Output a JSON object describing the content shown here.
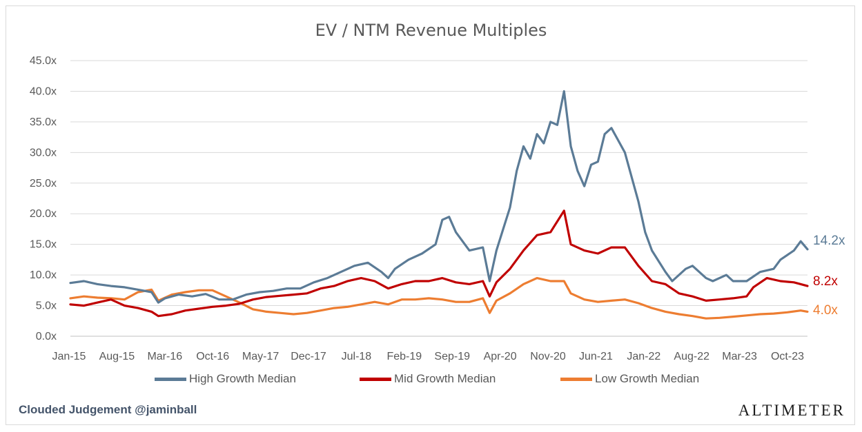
{
  "chart_data": {
    "type": "line",
    "title": "EV / NTM Revenue Multiples",
    "ylim": [
      0,
      45
    ],
    "y_tick_labels": [
      "0.0x",
      "5.0x",
      "10.0x",
      "15.0x",
      "20.0x",
      "25.0x",
      "30.0x",
      "35.0x",
      "40.0x",
      "45.0x"
    ],
    "x_tick_labels": [
      "Jan-15",
      "Aug-15",
      "Mar-16",
      "Oct-16",
      "May-17",
      "Dec-17",
      "Jul-18",
      "Feb-19",
      "Sep-19",
      "Apr-20",
      "Nov-20",
      "Jun-21",
      "Jan-22",
      "Aug-22",
      "Mar-23",
      "Oct-23"
    ],
    "x_range": [
      "2015-01",
      "2024-02"
    ],
    "grid": "horizontal",
    "legend_position": "bottom",
    "series": [
      {
        "name": "High Growth Median",
        "color": "#5b7b96",
        "end_label": "14.2x",
        "points": [
          [
            "2015-01",
            8.7
          ],
          [
            "2015-03",
            9.0
          ],
          [
            "2015-05",
            8.5
          ],
          [
            "2015-07",
            8.2
          ],
          [
            "2015-09",
            8.0
          ],
          [
            "2015-11",
            7.6
          ],
          [
            "2016-01",
            7.2
          ],
          [
            "2016-02",
            5.5
          ],
          [
            "2016-03",
            6.2
          ],
          [
            "2016-05",
            6.8
          ],
          [
            "2016-07",
            6.5
          ],
          [
            "2016-09",
            6.9
          ],
          [
            "2016-11",
            6.0
          ],
          [
            "2017-01",
            6.0
          ],
          [
            "2017-03",
            6.8
          ],
          [
            "2017-05",
            7.2
          ],
          [
            "2017-07",
            7.4
          ],
          [
            "2017-09",
            7.8
          ],
          [
            "2017-11",
            7.8
          ],
          [
            "2018-01",
            8.8
          ],
          [
            "2018-03",
            9.5
          ],
          [
            "2018-05",
            10.5
          ],
          [
            "2018-07",
            11.5
          ],
          [
            "2018-09",
            12.0
          ],
          [
            "2018-11",
            10.5
          ],
          [
            "2018-12",
            9.5
          ],
          [
            "2019-01",
            11.0
          ],
          [
            "2019-03",
            12.5
          ],
          [
            "2019-05",
            13.5
          ],
          [
            "2019-07",
            15.0
          ],
          [
            "2019-08",
            19.0
          ],
          [
            "2019-09",
            19.5
          ],
          [
            "2019-10",
            17.0
          ],
          [
            "2019-12",
            14.0
          ],
          [
            "2020-02",
            14.5
          ],
          [
            "2020-03",
            9.0
          ],
          [
            "2020-04",
            14.0
          ],
          [
            "2020-05",
            17.5
          ],
          [
            "2020-06",
            21.0
          ],
          [
            "2020-07",
            27.0
          ],
          [
            "2020-08",
            31.0
          ],
          [
            "2020-09",
            29.0
          ],
          [
            "2020-10",
            33.0
          ],
          [
            "2020-11",
            31.5
          ],
          [
            "2020-12",
            35.0
          ],
          [
            "2021-01",
            34.5
          ],
          [
            "2021-02",
            40.0
          ],
          [
            "2021-03",
            31.0
          ],
          [
            "2021-04",
            27.0
          ],
          [
            "2021-05",
            24.5
          ],
          [
            "2021-06",
            28.0
          ],
          [
            "2021-07",
            28.5
          ],
          [
            "2021-08",
            33.0
          ],
          [
            "2021-09",
            34.0
          ],
          [
            "2021-10",
            32.0
          ],
          [
            "2021-11",
            30.0
          ],
          [
            "2021-12",
            26.0
          ],
          [
            "2022-01",
            22.0
          ],
          [
            "2022-02",
            17.0
          ],
          [
            "2022-03",
            14.0
          ],
          [
            "2022-05",
            10.5
          ],
          [
            "2022-06",
            9.0
          ],
          [
            "2022-08",
            11.0
          ],
          [
            "2022-09",
            11.5
          ],
          [
            "2022-11",
            9.5
          ],
          [
            "2022-12",
            9.0
          ],
          [
            "2023-02",
            10.0
          ],
          [
            "2023-03",
            9.0
          ],
          [
            "2023-05",
            9.0
          ],
          [
            "2023-07",
            10.5
          ],
          [
            "2023-09",
            11.0
          ],
          [
            "2023-10",
            12.5
          ],
          [
            "2023-12",
            14.0
          ],
          [
            "2024-01",
            15.5
          ],
          [
            "2024-02",
            14.2
          ]
        ]
      },
      {
        "name": "Mid Growth Median",
        "color": "#c00000",
        "end_label": "8.2x",
        "points": [
          [
            "2015-01",
            5.2
          ],
          [
            "2015-03",
            5.0
          ],
          [
            "2015-05",
            5.5
          ],
          [
            "2015-07",
            6.0
          ],
          [
            "2015-09",
            5.0
          ],
          [
            "2015-11",
            4.6
          ],
          [
            "2016-01",
            4.0
          ],
          [
            "2016-02",
            3.3
          ],
          [
            "2016-04",
            3.6
          ],
          [
            "2016-06",
            4.2
          ],
          [
            "2016-08",
            4.5
          ],
          [
            "2016-10",
            4.8
          ],
          [
            "2016-12",
            5.0
          ],
          [
            "2017-02",
            5.3
          ],
          [
            "2017-04",
            6.0
          ],
          [
            "2017-06",
            6.4
          ],
          [
            "2017-08",
            6.6
          ],
          [
            "2017-10",
            6.8
          ],
          [
            "2017-12",
            7.0
          ],
          [
            "2018-02",
            7.8
          ],
          [
            "2018-04",
            8.2
          ],
          [
            "2018-06",
            9.0
          ],
          [
            "2018-08",
            9.5
          ],
          [
            "2018-10",
            9.0
          ],
          [
            "2018-12",
            7.8
          ],
          [
            "2019-02",
            8.5
          ],
          [
            "2019-04",
            9.0
          ],
          [
            "2019-06",
            9.0
          ],
          [
            "2019-08",
            9.5
          ],
          [
            "2019-10",
            8.8
          ],
          [
            "2019-12",
            8.5
          ],
          [
            "2020-02",
            9.0
          ],
          [
            "2020-03",
            6.5
          ],
          [
            "2020-04",
            8.8
          ],
          [
            "2020-06",
            11.0
          ],
          [
            "2020-08",
            14.0
          ],
          [
            "2020-10",
            16.5
          ],
          [
            "2020-12",
            17.0
          ],
          [
            "2021-02",
            20.5
          ],
          [
            "2021-03",
            15.0
          ],
          [
            "2021-05",
            14.0
          ],
          [
            "2021-07",
            13.5
          ],
          [
            "2021-09",
            14.5
          ],
          [
            "2021-11",
            14.5
          ],
          [
            "2022-01",
            11.5
          ],
          [
            "2022-03",
            9.0
          ],
          [
            "2022-05",
            8.5
          ],
          [
            "2022-07",
            7.0
          ],
          [
            "2022-09",
            6.5
          ],
          [
            "2022-11",
            5.8
          ],
          [
            "2023-01",
            6.0
          ],
          [
            "2023-03",
            6.2
          ],
          [
            "2023-05",
            6.5
          ],
          [
            "2023-06",
            8.0
          ],
          [
            "2023-08",
            9.5
          ],
          [
            "2023-10",
            9.0
          ],
          [
            "2023-12",
            8.8
          ],
          [
            "2024-02",
            8.2
          ]
        ]
      },
      {
        "name": "Low Growth Median",
        "color": "#ed7d31",
        "end_label": "4.0x",
        "points": [
          [
            "2015-01",
            6.2
          ],
          [
            "2015-03",
            6.5
          ],
          [
            "2015-05",
            6.3
          ],
          [
            "2015-07",
            6.2
          ],
          [
            "2015-09",
            6.0
          ],
          [
            "2015-11",
            7.2
          ],
          [
            "2016-01",
            7.6
          ],
          [
            "2016-02",
            5.8
          ],
          [
            "2016-04",
            6.8
          ],
          [
            "2016-06",
            7.2
          ],
          [
            "2016-08",
            7.5
          ],
          [
            "2016-10",
            7.5
          ],
          [
            "2016-12",
            6.5
          ],
          [
            "2017-02",
            5.5
          ],
          [
            "2017-04",
            4.4
          ],
          [
            "2017-06",
            4.0
          ],
          [
            "2017-08",
            3.8
          ],
          [
            "2017-10",
            3.6
          ],
          [
            "2017-12",
            3.8
          ],
          [
            "2018-02",
            4.2
          ],
          [
            "2018-04",
            4.6
          ],
          [
            "2018-06",
            4.8
          ],
          [
            "2018-08",
            5.2
          ],
          [
            "2018-10",
            5.6
          ],
          [
            "2018-12",
            5.2
          ],
          [
            "2019-02",
            6.0
          ],
          [
            "2019-04",
            6.0
          ],
          [
            "2019-06",
            6.2
          ],
          [
            "2019-08",
            6.0
          ],
          [
            "2019-10",
            5.6
          ],
          [
            "2019-12",
            5.6
          ],
          [
            "2020-02",
            6.2
          ],
          [
            "2020-03",
            3.8
          ],
          [
            "2020-04",
            5.8
          ],
          [
            "2020-06",
            7.0
          ],
          [
            "2020-08",
            8.5
          ],
          [
            "2020-10",
            9.5
          ],
          [
            "2020-12",
            9.0
          ],
          [
            "2021-02",
            9.0
          ],
          [
            "2021-03",
            7.0
          ],
          [
            "2021-05",
            6.0
          ],
          [
            "2021-07",
            5.6
          ],
          [
            "2021-09",
            5.8
          ],
          [
            "2021-11",
            6.0
          ],
          [
            "2022-01",
            5.4
          ],
          [
            "2022-03",
            4.6
          ],
          [
            "2022-05",
            4.0
          ],
          [
            "2022-07",
            3.6
          ],
          [
            "2022-09",
            3.3
          ],
          [
            "2022-11",
            2.9
          ],
          [
            "2023-01",
            3.0
          ],
          [
            "2023-03",
            3.2
          ],
          [
            "2023-05",
            3.4
          ],
          [
            "2023-07",
            3.6
          ],
          [
            "2023-09",
            3.7
          ],
          [
            "2023-11",
            3.9
          ],
          [
            "2024-01",
            4.2
          ],
          [
            "2024-02",
            4.0
          ]
        ]
      }
    ]
  },
  "footer": {
    "left": "Clouded Judgement @jaminball",
    "right": "ALTIMETER"
  }
}
